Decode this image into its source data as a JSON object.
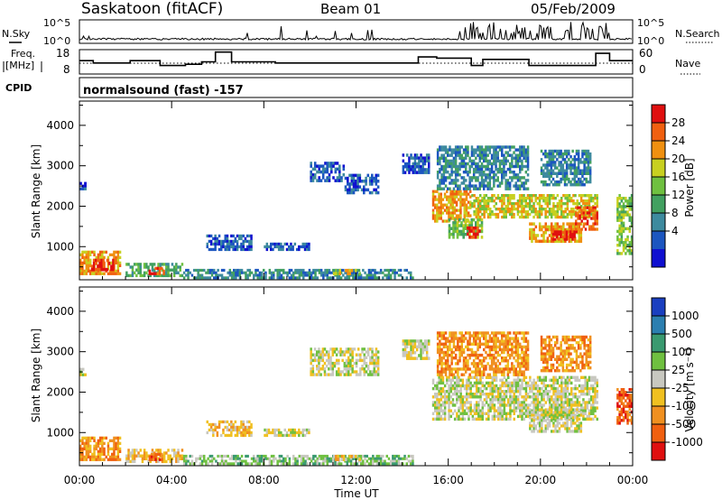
{
  "header": {
    "title": "Saskatoon (fitACF)",
    "beam": "Beam 01",
    "date": "05/Feb/2009"
  },
  "sky_panel": {
    "left_label": "N.Sky",
    "right_label": "N.Search",
    "ytick_top": "10^5",
    "ytick_bottom": "10^0"
  },
  "freq_panel": {
    "left_label_1": "Freq.",
    "left_label_2": "[MHz]",
    "right_label": "Nave",
    "left_ticks": [
      "18",
      "8"
    ],
    "right_ticks": [
      "60",
      "0"
    ],
    "freq_steps": [
      {
        "t": 0.0,
        "v": 0.55
      },
      {
        "t": 0.6,
        "v": 0.45
      },
      {
        "t": 2.2,
        "v": 0.55
      },
      {
        "t": 3.5,
        "v": 0.35
      },
      {
        "t": 4.6,
        "v": 0.4
      },
      {
        "t": 5.3,
        "v": 0.5
      },
      {
        "t": 5.9,
        "v": 0.9
      },
      {
        "t": 6.6,
        "v": 0.5
      },
      {
        "t": 8.5,
        "v": 0.45
      },
      {
        "t": 11.5,
        "v": 0.45
      },
      {
        "t": 14.7,
        "v": 0.7
      },
      {
        "t": 15.5,
        "v": 0.65
      },
      {
        "t": 17.0,
        "v": 0.35
      },
      {
        "t": 17.5,
        "v": 0.6
      },
      {
        "t": 19.5,
        "v": 0.35
      },
      {
        "t": 22.4,
        "v": 0.85
      },
      {
        "t": 23.0,
        "v": 0.55
      },
      {
        "t": 24.0,
        "v": 0.55
      }
    ]
  },
  "cpid": {
    "label": "CPID",
    "text": "normalsound (fast) -157"
  },
  "power_panel": {
    "ylabel": "Slant Range [km]",
    "yticks": [
      "4000",
      "3000",
      "2000",
      "1000"
    ],
    "colorbar_label": "Power [dB]",
    "colorbar_ticks": [
      "28",
      "24",
      "20",
      "16",
      "12",
      "8",
      "4"
    ],
    "colors": [
      "#1010d0",
      "#1c56c0",
      "#3d8a9e",
      "#42a060",
      "#6fc040",
      "#c8d020",
      "#f09010",
      "#f06010",
      "#e01010"
    ]
  },
  "velocity_panel": {
    "ylabel": "Slant Range [km]",
    "yticks": [
      "4000",
      "3000",
      "2000",
      "1000"
    ],
    "colorbar_label": "Velocity [m s⁻¹]",
    "colorbar_ticks": [
      "1000",
      "500",
      "100",
      "25",
      "-25",
      "-100",
      "-500",
      "-1000"
    ],
    "colors": [
      "#1a3fc0",
      "#2c7fb0",
      "#3a9a70",
      "#6fc040",
      "#c8c8c0",
      "#f0c020",
      "#f09020",
      "#f06010",
      "#e01010"
    ]
  },
  "xaxis": {
    "label": "Time UT",
    "ticks": [
      "00:00",
      "04:00",
      "08:00",
      "12:00",
      "16:00",
      "20:00",
      "00:00"
    ]
  },
  "chart_data": {
    "type": "heatmap",
    "xlabel": "Time UT",
    "ylabel": "Slant Range [km]",
    "xlim": [
      0,
      24
    ],
    "ylim": [
      180,
      4600
    ],
    "power_regions": [
      {
        "t0": 0.0,
        "t1": 1.8,
        "r0": 300,
        "r1": 900,
        "level": 6
      },
      {
        "t0": 0.5,
        "t1": 1.5,
        "r0": 400,
        "r1": 700,
        "level": 8
      },
      {
        "t0": 2.0,
        "t1": 4.5,
        "r0": 250,
        "r1": 600,
        "level": 3
      },
      {
        "t0": 3.0,
        "t1": 3.7,
        "r0": 300,
        "r1": 500,
        "level": 7
      },
      {
        "t0": 4.5,
        "t1": 14.5,
        "r0": 200,
        "r1": 450,
        "level": 2
      },
      {
        "t0": 11.0,
        "t1": 12.2,
        "r0": 300,
        "r1": 450,
        "level": 5
      },
      {
        "t0": 5.5,
        "t1": 7.5,
        "r0": 900,
        "r1": 1300,
        "level": 1
      },
      {
        "t0": 8.0,
        "t1": 10.0,
        "r0": 900,
        "r1": 1100,
        "level": 1
      },
      {
        "t0": 10.0,
        "t1": 11.5,
        "r0": 2600,
        "r1": 3100,
        "level": 1
      },
      {
        "t0": 11.5,
        "t1": 13.0,
        "r0": 2300,
        "r1": 2800,
        "level": 1
      },
      {
        "t0": 14.0,
        "t1": 15.2,
        "r0": 2800,
        "r1": 3300,
        "level": 1
      },
      {
        "t0": 15.3,
        "t1": 17.0,
        "r0": 1600,
        "r1": 2400,
        "level": 6
      },
      {
        "t0": 16.0,
        "t1": 17.5,
        "r0": 1200,
        "r1": 1700,
        "level": 4
      },
      {
        "t0": 16.8,
        "t1": 17.4,
        "r0": 1200,
        "r1": 1500,
        "level": 8
      },
      {
        "t0": 17.0,
        "t1": 22.5,
        "r0": 1700,
        "r1": 2300,
        "level": 5
      },
      {
        "t0": 19.5,
        "t1": 21.8,
        "r0": 1100,
        "r1": 1600,
        "level": 6
      },
      {
        "t0": 20.5,
        "t1": 21.6,
        "r0": 1150,
        "r1": 1400,
        "level": 8
      },
      {
        "t0": 21.5,
        "t1": 22.5,
        "r0": 1400,
        "r1": 2000,
        "level": 7
      },
      {
        "t0": 15.5,
        "t1": 19.5,
        "r0": 2400,
        "r1": 3500,
        "level": 2
      },
      {
        "t0": 20.0,
        "t1": 22.2,
        "r0": 2500,
        "r1": 3400,
        "level": 2
      },
      {
        "t0": 23.3,
        "t1": 24.0,
        "r0": 800,
        "r1": 2300,
        "level": 4
      },
      {
        "t0": 0.0,
        "t1": 0.3,
        "r0": 2400,
        "r1": 2600,
        "level": 1
      }
    ],
    "velocity_regions": [
      {
        "t0": 0.0,
        "t1": 1.8,
        "r0": 300,
        "r1": 900,
        "level": 6
      },
      {
        "t0": 2.0,
        "t1": 4.5,
        "r0": 250,
        "r1": 600,
        "level": 5
      },
      {
        "t0": 3.0,
        "t1": 3.7,
        "r0": 300,
        "r1": 500,
        "level": 7
      },
      {
        "t0": 4.5,
        "t1": 14.5,
        "r0": 200,
        "r1": 450,
        "level": 3
      },
      {
        "t0": 11.0,
        "t1": 12.2,
        "r0": 300,
        "r1": 450,
        "level": 5
      },
      {
        "t0": 5.5,
        "t1": 7.5,
        "r0": 900,
        "r1": 1300,
        "level": 5
      },
      {
        "t0": 8.0,
        "t1": 10.0,
        "r0": 900,
        "r1": 1100,
        "level": 4
      },
      {
        "t0": 10.0,
        "t1": 13.0,
        "r0": 2400,
        "r1": 3100,
        "level": 4
      },
      {
        "t0": 14.0,
        "t1": 15.2,
        "r0": 2800,
        "r1": 3300,
        "level": 4
      },
      {
        "t0": 15.3,
        "t1": 22.5,
        "r0": 1300,
        "r1": 2400,
        "level": 4
      },
      {
        "t0": 19.5,
        "t1": 21.8,
        "r0": 1000,
        "r1": 1600,
        "level": 4
      },
      {
        "t0": 15.5,
        "t1": 19.5,
        "r0": 2400,
        "r1": 3500,
        "level": 6
      },
      {
        "t0": 20.0,
        "t1": 22.2,
        "r0": 2500,
        "r1": 3400,
        "level": 6
      },
      {
        "t0": 23.3,
        "t1": 24.0,
        "r0": 1200,
        "r1": 2100,
        "level": 7
      },
      {
        "t0": 0.0,
        "t1": 0.3,
        "r0": 2400,
        "r1": 2600,
        "level": 4
      }
    ]
  }
}
